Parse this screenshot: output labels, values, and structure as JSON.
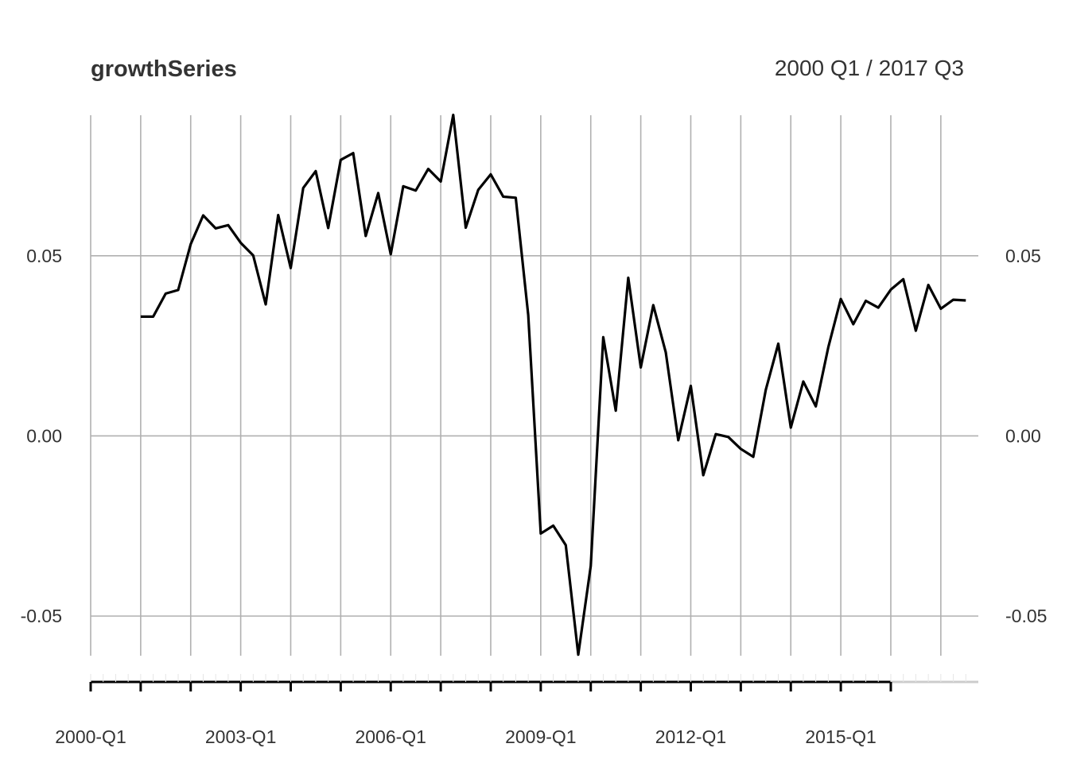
{
  "chart_data": {
    "type": "line",
    "title": "growthSeries",
    "date_range_label": "2000 Q1 / 2017 Q3",
    "xlabel": "",
    "ylabel": "",
    "x_start": "2000-Q1",
    "x_end": "2017-Q3",
    "x_ticks": [
      "2000-Q1",
      "2003-Q1",
      "2006-Q1",
      "2009-Q1",
      "2012-Q1",
      "2015-Q1"
    ],
    "y_ticks": [
      -0.05,
      0.0,
      0.05
    ],
    "y_tick_labels": [
      "-0.05",
      "0.00",
      "0.05"
    ],
    "ylim": [
      -0.061,
      0.089
    ],
    "grid": true,
    "series": [
      {
        "x": [
          "2001-Q1",
          "2001-Q2",
          "2001-Q3",
          "2001-Q4",
          "2002-Q1",
          "2002-Q2",
          "2002-Q3",
          "2002-Q4",
          "2003-Q1",
          "2003-Q2",
          "2003-Q3",
          "2003-Q4",
          "2004-Q1",
          "2004-Q2",
          "2004-Q3",
          "2004-Q4",
          "2005-Q1",
          "2005-Q2",
          "2005-Q3",
          "2005-Q4",
          "2006-Q1",
          "2006-Q2",
          "2006-Q3",
          "2006-Q4",
          "2007-Q1",
          "2007-Q2",
          "2007-Q3",
          "2007-Q4",
          "2008-Q1",
          "2008-Q2",
          "2008-Q3",
          "2008-Q4",
          "2009-Q1",
          "2009-Q2",
          "2009-Q3",
          "2009-Q4",
          "2010-Q1",
          "2010-Q2",
          "2010-Q3",
          "2010-Q4",
          "2011-Q1",
          "2011-Q2",
          "2011-Q3",
          "2011-Q4",
          "2012-Q1",
          "2012-Q2",
          "2012-Q3",
          "2012-Q4",
          "2013-Q1",
          "2013-Q2",
          "2013-Q3",
          "2013-Q4",
          "2014-Q1",
          "2014-Q2",
          "2014-Q3",
          "2014-Q4",
          "2015-Q1",
          "2015-Q2",
          "2015-Q3",
          "2015-Q4",
          "2016-Q1",
          "2016-Q2",
          "2016-Q3",
          "2016-Q4",
          "2017-Q1",
          "2017-Q2",
          "2017-Q3"
        ],
        "values": [
          0.0331,
          0.0331,
          0.0395,
          0.0405,
          0.0532,
          0.0612,
          0.0576,
          0.0585,
          0.0536,
          0.0501,
          0.0365,
          0.0613,
          0.0466,
          0.0688,
          0.0735,
          0.0577,
          0.0766,
          0.0785,
          0.0555,
          0.0674,
          0.0504,
          0.0693,
          0.0681,
          0.0741,
          0.0706,
          0.0891,
          0.0578,
          0.0683,
          0.0726,
          0.0664,
          0.0661,
          0.0335,
          -0.0271,
          -0.0249,
          -0.0303,
          -0.0607,
          -0.0361,
          0.0274,
          0.007,
          0.0439,
          0.019,
          0.0363,
          0.0232,
          -0.0012,
          0.0139,
          -0.0109,
          0.0005,
          -0.0003,
          -0.0036,
          -0.0058,
          0.0128,
          0.0256,
          0.0023,
          0.0151,
          0.0082,
          0.0246,
          0.038,
          0.031,
          0.0375,
          0.0356,
          0.0406,
          0.0435,
          0.0292,
          0.0419,
          0.0353,
          0.0378,
          0.0376
        ]
      }
    ]
  }
}
